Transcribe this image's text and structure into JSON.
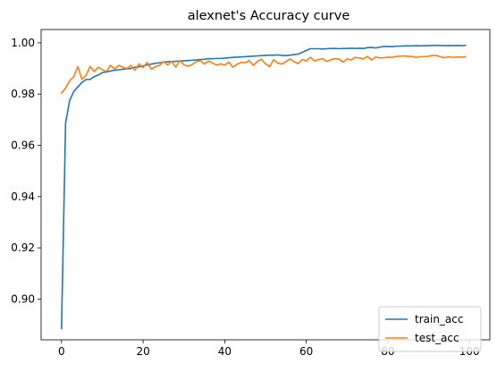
{
  "chart_data": {
    "type": "line",
    "title": "alexnet's Accuracy curve",
    "xlabel": "",
    "ylabel": "",
    "xlim": [
      -5,
      105
    ],
    "ylim": [
      0.8841,
      1.0052
    ],
    "xticks": [
      0,
      20,
      40,
      60,
      80,
      100
    ],
    "yticks": [
      0.9,
      0.92,
      0.94,
      0.96,
      0.98,
      1.0
    ],
    "grid": false,
    "legend_position": "lower-right",
    "series": [
      {
        "name": "train_acc",
        "color": "#1f77b4",
        "x": [
          0,
          1,
          2,
          3,
          4,
          5,
          6,
          7,
          8,
          9,
          10,
          11,
          12,
          13,
          14,
          15,
          16,
          17,
          18,
          19,
          20,
          21,
          22,
          23,
          24,
          25,
          26,
          27,
          28,
          29,
          30,
          31,
          32,
          33,
          34,
          35,
          36,
          37,
          38,
          39,
          40,
          41,
          42,
          43,
          44,
          45,
          46,
          47,
          48,
          49,
          50,
          51,
          52,
          53,
          54,
          55,
          56,
          57,
          58,
          59,
          60,
          61,
          62,
          63,
          64,
          65,
          66,
          67,
          68,
          69,
          70,
          71,
          72,
          73,
          74,
          75,
          76,
          77,
          78,
          79,
          80,
          81,
          82,
          83,
          84,
          85,
          86,
          87,
          88,
          89,
          90,
          91,
          92,
          93,
          94,
          95,
          96,
          97,
          98,
          99
        ],
        "values": [
          0.8885,
          0.9688,
          0.9775,
          0.981,
          0.9828,
          0.9845,
          0.9857,
          0.9857,
          0.9868,
          0.9874,
          0.9884,
          0.9886,
          0.989,
          0.9893,
          0.9895,
          0.9897,
          0.9898,
          0.99,
          0.9905,
          0.9906,
          0.991,
          0.9914,
          0.9917,
          0.992,
          0.9922,
          0.9924,
          0.9926,
          0.9927,
          0.9928,
          0.9929,
          0.993,
          0.9931,
          0.9932,
          0.9933,
          0.9935,
          0.9936,
          0.9938,
          0.9938,
          0.9939,
          0.9939,
          0.994,
          0.9942,
          0.9943,
          0.9944,
          0.9945,
          0.9946,
          0.9947,
          0.9948,
          0.9949,
          0.995,
          0.9951,
          0.9952,
          0.9952,
          0.9953,
          0.9951,
          0.995,
          0.9952,
          0.9954,
          0.9956,
          0.9963,
          0.997,
          0.9977,
          0.9977,
          0.9977,
          0.9976,
          0.9977,
          0.9978,
          0.9978,
          0.9977,
          0.9978,
          0.9978,
          0.9979,
          0.9978,
          0.9979,
          0.9978,
          0.9981,
          0.9982,
          0.998,
          0.9983,
          0.9986,
          0.9986,
          0.9985,
          0.9987,
          0.9987,
          0.9988,
          0.9988,
          0.9988,
          0.9989,
          0.9988,
          0.9989,
          0.9989,
          0.999,
          0.999,
          0.999,
          0.9989,
          0.999,
          0.9989,
          0.999,
          0.9989,
          0.999
        ]
      },
      {
        "name": "test_acc",
        "color": "#ff7f0e",
        "x": [
          0,
          1,
          2,
          3,
          4,
          5,
          6,
          7,
          8,
          9,
          10,
          11,
          12,
          13,
          14,
          15,
          16,
          17,
          18,
          19,
          20,
          21,
          22,
          23,
          24,
          25,
          26,
          27,
          28,
          29,
          30,
          31,
          32,
          33,
          34,
          35,
          36,
          37,
          38,
          39,
          40,
          41,
          42,
          43,
          44,
          45,
          46,
          47,
          48,
          49,
          50,
          51,
          52,
          53,
          54,
          55,
          56,
          57,
          58,
          59,
          60,
          61,
          62,
          63,
          64,
          65,
          66,
          67,
          68,
          69,
          70,
          71,
          72,
          73,
          74,
          75,
          76,
          77,
          78,
          79,
          80,
          81,
          82,
          83,
          84,
          85,
          86,
          87,
          88,
          89,
          90,
          91,
          92,
          93,
          94,
          95,
          96,
          97,
          98,
          99
        ],
        "values": [
          0.9803,
          0.9824,
          0.9852,
          0.9868,
          0.9907,
          0.9858,
          0.9873,
          0.9908,
          0.9888,
          0.9905,
          0.9895,
          0.9888,
          0.9912,
          0.9898,
          0.9912,
          0.9905,
          0.9899,
          0.9912,
          0.9893,
          0.9918,
          0.9903,
          0.9924,
          0.9897,
          0.9907,
          0.9912,
          0.9927,
          0.9914,
          0.9928,
          0.9905,
          0.9931,
          0.9914,
          0.9909,
          0.9915,
          0.9926,
          0.9931,
          0.9917,
          0.9929,
          0.9921,
          0.9913,
          0.9918,
          0.9913,
          0.9925,
          0.9905,
          0.9916,
          0.9924,
          0.9922,
          0.9931,
          0.9912,
          0.9927,
          0.9936,
          0.9918,
          0.9907,
          0.9934,
          0.9921,
          0.9917,
          0.9927,
          0.9937,
          0.9926,
          0.9919,
          0.9935,
          0.9929,
          0.9944,
          0.9929,
          0.9935,
          0.9938,
          0.9927,
          0.9934,
          0.9938,
          0.9937,
          0.9924,
          0.9937,
          0.9933,
          0.9943,
          0.9941,
          0.9937,
          0.9947,
          0.9933,
          0.9945,
          0.9941,
          0.9942,
          0.9944,
          0.9943,
          0.9947,
          0.9948,
          0.9949,
          0.9947,
          0.9947,
          0.9943,
          0.9946,
          0.9946,
          0.9948,
          0.9951,
          0.995,
          0.9945,
          0.9942,
          0.9946,
          0.9943,
          0.9945,
          0.9944,
          0.9945
        ]
      }
    ]
  }
}
